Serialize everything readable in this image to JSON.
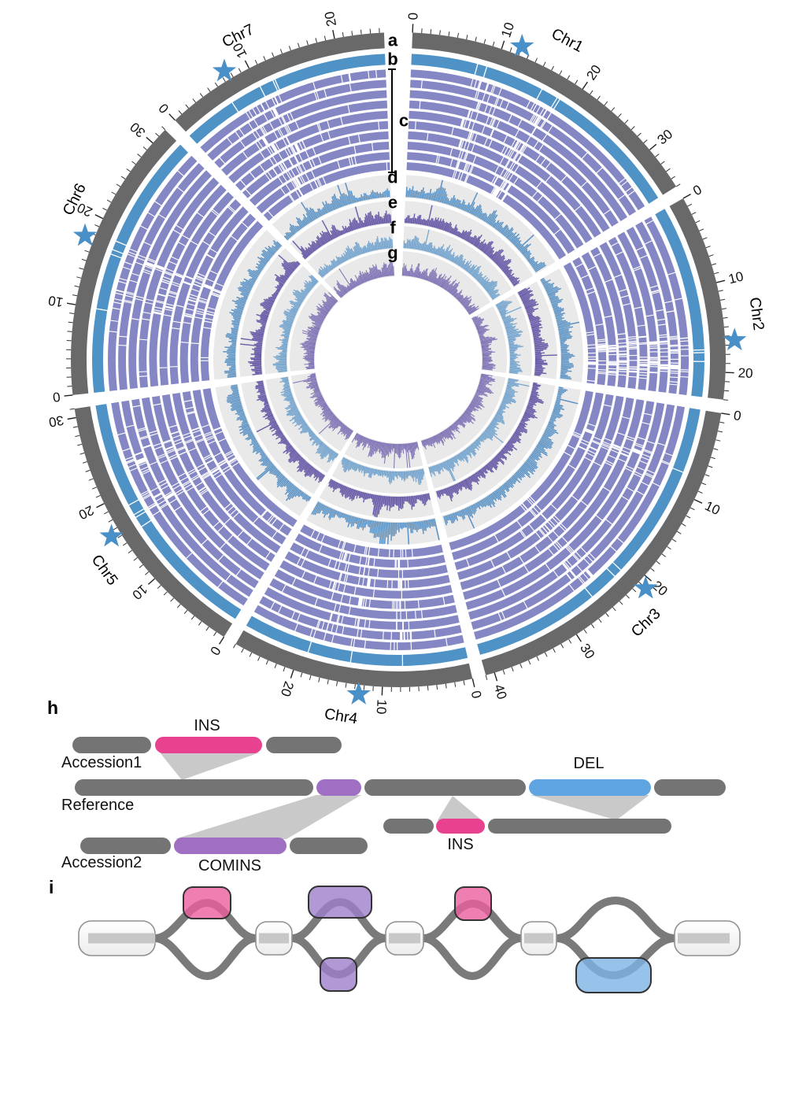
{
  "circos": {
    "track_labels": [
      "a",
      "b",
      "c",
      "d",
      "e",
      "f",
      "g"
    ],
    "random_seed": 20240,
    "pav_ring_count": 10,
    "ticks": {
      "minor_mb": 1,
      "major_mb": 10,
      "unit": "Mb"
    },
    "chromosomes": [
      {
        "name": "Chr1",
        "length_mb": 35,
        "star_mb": 12,
        "label_mb": 16
      },
      {
        "name": "Chr2",
        "length_mb": 23,
        "star_mb": 16.5,
        "label_mb": 14
      },
      {
        "name": "Chr3",
        "length_mb": 41,
        "star_mb": 21,
        "label_mb": 23.5
      },
      {
        "name": "Chr4",
        "length_mb": 27,
        "star_mb": 12.5,
        "label_mb": 14
      },
      {
        "name": "Chr5",
        "length_mb": 31,
        "star_mb": 16.5,
        "label_mb": 14
      },
      {
        "name": "Chr6",
        "length_mb": 32,
        "star_mb": 17.5,
        "label_mb": 20.5
      },
      {
        "name": "Chr7",
        "length_mb": 25.5,
        "star_mb": 7.5,
        "label_mb": 10.5
      }
    ],
    "colors": {
      "ideogram": "#696969",
      "ring_b": "#4e92c6",
      "pav_ring": "#8487c4",
      "hist_d": "#5a92c4",
      "hist_e": "#6a5ca8",
      "hist_f": "#76a5ce",
      "hist_g": "#8275b6",
      "track_bg": "#e9e9e9",
      "star": "#4a90c8",
      "text": "#111111"
    }
  },
  "panel_h": {
    "panel_label": "h",
    "rows": {
      "accession1": "Accession1",
      "reference": "Reference",
      "accession2": "Accession2"
    },
    "labels": {
      "ins_accession1": "INS",
      "del_reference": "DEL",
      "comins_accession2": "COMINS",
      "ins_reference_right": "INS"
    },
    "colors": {
      "segment": "#747474",
      "ins": "#e8418f",
      "comins": "#9f6fc4",
      "del": "#5fa5e2",
      "beam": "#c9c9c9"
    }
  },
  "panel_i": {
    "panel_label": "i",
    "colors": {
      "edge": "#7a7a7a",
      "node_border": "#333333",
      "white_node_border": "#909090",
      "path_bar": "#c7c7c7",
      "ins_node": "#ec5f9e",
      "comins_node": "#9d7fca",
      "del_node": "#7db4e6"
    }
  },
  "chart_data": {
    "type": "circos",
    "title": "",
    "description": "Circular pangenome plot of seven chromosomes. Track a: chromosome ideograms with Mb tick scale; track b: single blue genome ring; track c: stack of 10 purple presence/absence rings where white radial gaps mark missing sequence; tracks d-g: outward-pointing density histograms on light-gray backgrounds. Blue stars mark one locus per chromosome. Panels h and i illustrate INS/DEL/COMINS structural variants between accessions and the reference, and their pangenome-graph bubble representation.",
    "categories": [
      "Chr1",
      "Chr2",
      "Chr3",
      "Chr4",
      "Chr5",
      "Chr6",
      "Chr7"
    ],
    "chromosome_lengths_mb": [
      35,
      23,
      41,
      27,
      31,
      32,
      25.5
    ],
    "axis_tick_labels_mb": {
      "Chr1": [
        0,
        10,
        20,
        30
      ],
      "Chr2": [
        0,
        10,
        20
      ],
      "Chr3": [
        0,
        10,
        20,
        30,
        40
      ],
      "Chr4": [
        0,
        10,
        20
      ],
      "Chr5": [
        0,
        10,
        20,
        30
      ],
      "Chr6": [
        0,
        10,
        20,
        30
      ],
      "Chr7": [
        0,
        10,
        20
      ]
    },
    "star_markers_mb": {
      "Chr1": 12,
      "Chr2": 16.5,
      "Chr3": 21,
      "Chr4": 12.5,
      "Chr5": 16.5,
      "Chr6": 17.5,
      "Chr7": 7.5
    },
    "tracks": [
      {
        "id": "a",
        "kind": "ideogram",
        "color": "#696969",
        "description": "chromosome scale, minor tick 1 Mb, labeled tick 10 Mb"
      },
      {
        "id": "b",
        "kind": "ring",
        "color": "#4e92c6",
        "description": "single genome ring with sparse white gaps"
      },
      {
        "id": "c",
        "kind": "ring_stack",
        "count": 10,
        "color": "#8487c4",
        "description": "presence/absence rings of 10 accessions; white stripes = absent sequence"
      },
      {
        "id": "d",
        "kind": "histogram",
        "color": "#5a92c4",
        "direction": "outward"
      },
      {
        "id": "e",
        "kind": "histogram",
        "color": "#6a5ca8",
        "direction": "outward"
      },
      {
        "id": "f",
        "kind": "histogram",
        "color": "#76a5ce",
        "direction": "outward"
      },
      {
        "id": "g",
        "kind": "histogram",
        "color": "#8275b6",
        "direction": "outward"
      }
    ],
    "histogram_values_note": "per-bin histogram values are sub-pixel noise in the source image and are rendered procedurally from random_seed with the density hotspots below",
    "hotspots": {
      "d": [
        {
          "chr": "Chr1",
          "f": 0.5,
          "s": 1.9
        },
        {
          "chr": "Chr2",
          "f": 0.45,
          "s": 1.4
        },
        {
          "chr": "Chr4",
          "f": 0.42,
          "s": 2.1
        },
        {
          "chr": "Chr5",
          "f": 0.2,
          "s": 1.5
        },
        {
          "chr": "Chr7",
          "f": 0.5,
          "s": 1.5
        }
      ],
      "e": [
        {
          "chr": "Chr1",
          "f": 0.6,
          "s": 1.3
        },
        {
          "chr": "Chr3",
          "f": 0.5,
          "s": 1.5
        },
        {
          "chr": "Chr4",
          "f": 0.48,
          "s": 2.1
        },
        {
          "chr": "Chr6",
          "f": 0.5,
          "s": 1.5
        }
      ],
      "f": [
        {
          "chr": "Chr1",
          "f": 0.35,
          "s": 1.3
        },
        {
          "chr": "Chr2",
          "f": 0.5,
          "s": 1.5
        },
        {
          "chr": "Chr5",
          "f": 0.55,
          "s": 1.4
        }
      ],
      "g": [
        {
          "chr": "Chr3",
          "f": 0.45,
          "s": 1.4
        },
        {
          "chr": "Chr4",
          "f": 0.5,
          "s": 1.8
        },
        {
          "chr": "Chr6",
          "f": 0.45,
          "s": 1.3
        }
      ]
    },
    "pav_dense_regions": {
      "Chr1": [
        0.28,
        0.5
      ],
      "Chr2": [
        0.72,
        0.85
      ],
      "Chr3": [
        0.2,
        0.6
      ],
      "Chr4": [
        0.3,
        0.5,
        0.65
      ],
      "Chr5": [
        0.55,
        0.75
      ],
      "Chr6": [
        0.38,
        0.52
      ],
      "Chr7": [
        0.3,
        0.42
      ]
    }
  }
}
